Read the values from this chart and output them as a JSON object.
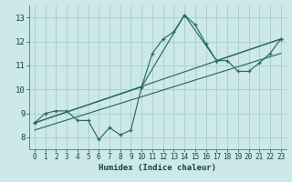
{
  "xlabel": "Humidex (Indice chaleur)",
  "xlim": [
    -0.5,
    23.5
  ],
  "ylim": [
    7.5,
    13.5
  ],
  "yticks": [
    8,
    9,
    10,
    11,
    12,
    13
  ],
  "xticks": [
    0,
    1,
    2,
    3,
    4,
    5,
    6,
    7,
    8,
    9,
    10,
    11,
    12,
    13,
    14,
    15,
    16,
    17,
    18,
    19,
    20,
    21,
    22,
    23
  ],
  "bg_color": "#cce8e8",
  "grid_color": "#aacccc",
  "line_color": "#2a6b60",
  "series1_x": [
    0,
    1,
    2,
    3,
    4,
    5,
    6,
    7,
    8,
    9,
    10,
    11,
    12,
    13,
    14,
    15,
    16,
    17,
    18,
    19,
    20,
    21,
    22,
    23
  ],
  "series1_y": [
    8.6,
    9.0,
    9.1,
    9.1,
    8.7,
    8.7,
    7.9,
    8.4,
    8.1,
    8.3,
    10.1,
    11.5,
    12.1,
    12.4,
    13.1,
    12.7,
    11.9,
    11.2,
    11.2,
    10.75,
    10.75,
    11.1,
    11.5,
    12.1
  ],
  "series2_x": [
    0,
    10,
    14,
    17,
    23
  ],
  "series2_y": [
    8.6,
    10.1,
    13.1,
    11.2,
    12.1
  ],
  "series3_x": [
    0,
    23
  ],
  "series3_y": [
    8.6,
    12.1
  ],
  "series4_x": [
    0,
    23
  ],
  "series4_y": [
    8.3,
    11.5
  ]
}
